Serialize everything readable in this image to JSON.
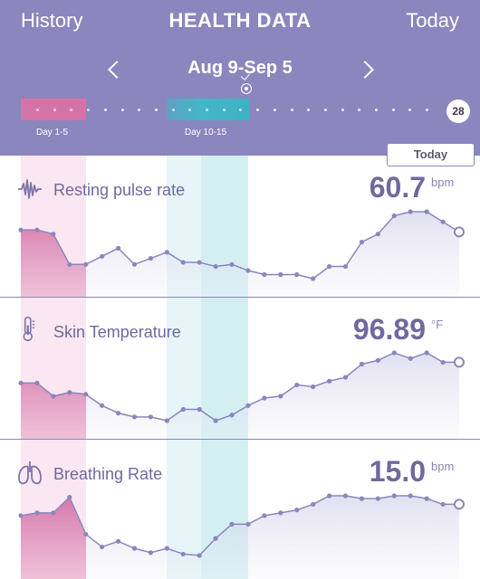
{
  "header": {
    "history_label": "History",
    "title": "HEALTH DATA",
    "today_label": "Today",
    "date_range": "Aug 9-Sep 5",
    "day_badge": "28",
    "bands": [
      {
        "label": "Day 1-5"
      },
      {
        "label": "Day 10-15"
      }
    ],
    "today_tab": "Today"
  },
  "colors": {
    "header_bg": "#8b86bd",
    "period_band": "#d573a8",
    "fertile_band": "#3db2c5",
    "line": "#8b86bd",
    "text": "#6e6a9e"
  },
  "icons": {
    "pulse": "pulse-wave-icon",
    "temperature": "thermometer-icon",
    "breathing": "lungs-icon"
  },
  "chart_data": [
    {
      "type": "area",
      "title": "Resting pulse rate",
      "value": "60.7",
      "unit": "bpm",
      "x": [
        1,
        2,
        3,
        4,
        5,
        6,
        7,
        8,
        9,
        10,
        11,
        12,
        13,
        14,
        15,
        16,
        17,
        18,
        19,
        20,
        21,
        22,
        23,
        24,
        25,
        26,
        27,
        28
      ],
      "values": [
        61.5,
        61.5,
        61.3,
        59.8,
        59.8,
        60.2,
        60.6,
        59.8,
        60.1,
        60.4,
        59.9,
        59.9,
        59.7,
        59.8,
        59.5,
        59.3,
        59.3,
        59.3,
        59.1,
        59.7,
        59.7,
        60.9,
        61.3,
        62.2,
        62.4,
        62.4,
        61.9,
        61.4
      ]
    },
    {
      "type": "area",
      "title": "Skin Temperature",
      "value": "96.89",
      "unit": "°F",
      "x": [
        1,
        2,
        3,
        4,
        5,
        6,
        7,
        8,
        9,
        10,
        11,
        12,
        13,
        14,
        15,
        16,
        17,
        18,
        19,
        20,
        21,
        22,
        23,
        24,
        25,
        26,
        27,
        28
      ],
      "values": [
        96.6,
        96.6,
        95.9,
        96.1,
        96.0,
        95.4,
        95.0,
        94.8,
        94.8,
        94.6,
        95.2,
        95.2,
        94.6,
        94.9,
        95.4,
        95.8,
        95.9,
        96.5,
        96.4,
        96.7,
        96.9,
        97.6,
        97.8,
        98.2,
        97.9,
        98.2,
        97.7,
        97.7
      ]
    },
    {
      "type": "area",
      "title": "Breathing Rate",
      "value": "15.0",
      "unit": "bpm",
      "x": [
        1,
        2,
        3,
        4,
        5,
        6,
        7,
        8,
        9,
        10,
        11,
        12,
        13,
        14,
        15,
        16,
        17,
        18,
        19,
        20,
        21,
        22,
        23,
        24,
        25,
        26,
        27,
        28
      ],
      "values": [
        13.2,
        13.4,
        13.4,
        14.5,
        11.9,
        11.0,
        11.4,
        10.9,
        10.6,
        10.9,
        10.5,
        10.4,
        11.6,
        12.6,
        12.6,
        13.2,
        13.4,
        13.6,
        14.0,
        14.6,
        14.6,
        14.4,
        14.4,
        14.6,
        14.6,
        14.4,
        14.0,
        14.0
      ]
    }
  ]
}
